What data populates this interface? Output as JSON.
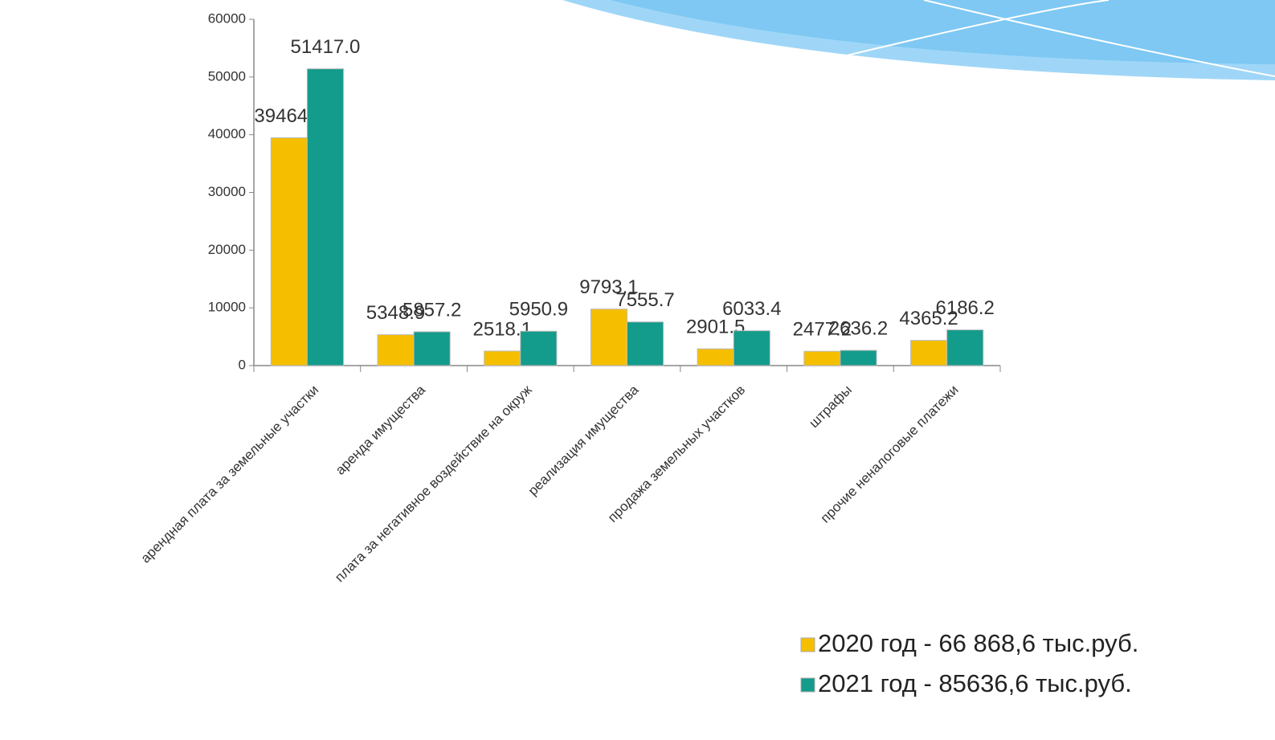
{
  "chart_data": {
    "type": "bar",
    "categories": [
      "арендная плата за земельные участки",
      "аренда имущества",
      "плата за негативное воздействие на окруж",
      "реализация имущества",
      "продажа земельных участков",
      "штрафы",
      "прочие неналоговые платежи"
    ],
    "series": [
      {
        "name": "2020 год - 66 868,6 тыс.руб.",
        "color": "#f5bf00",
        "values": [
          39464.7,
          5348.9,
          2518.1,
          9793.1,
          2901.5,
          2477.2,
          4365.2
        ],
        "value_labels": [
          "39464,7",
          "5348.9",
          "2518.1",
          "9793.1",
          "2901.5",
          "2477.2",
          "4365.2"
        ]
      },
      {
        "name": "2021 год - 85636,6 тыс.руб.",
        "color": "#139b8b",
        "values": [
          51417.0,
          5857.2,
          5950.9,
          7555.7,
          6033.4,
          2636.2,
          6186.2
        ],
        "value_labels": [
          "51417.0",
          "5857.2",
          "5950.9",
          "7555.7",
          "6033.4",
          "2636.2",
          "6186.2"
        ]
      }
    ],
    "ylim": [
      0,
      60000
    ],
    "yticks": [
      0,
      10000,
      20000,
      30000,
      40000,
      50000,
      60000
    ],
    "legend": "bottom-right"
  }
}
